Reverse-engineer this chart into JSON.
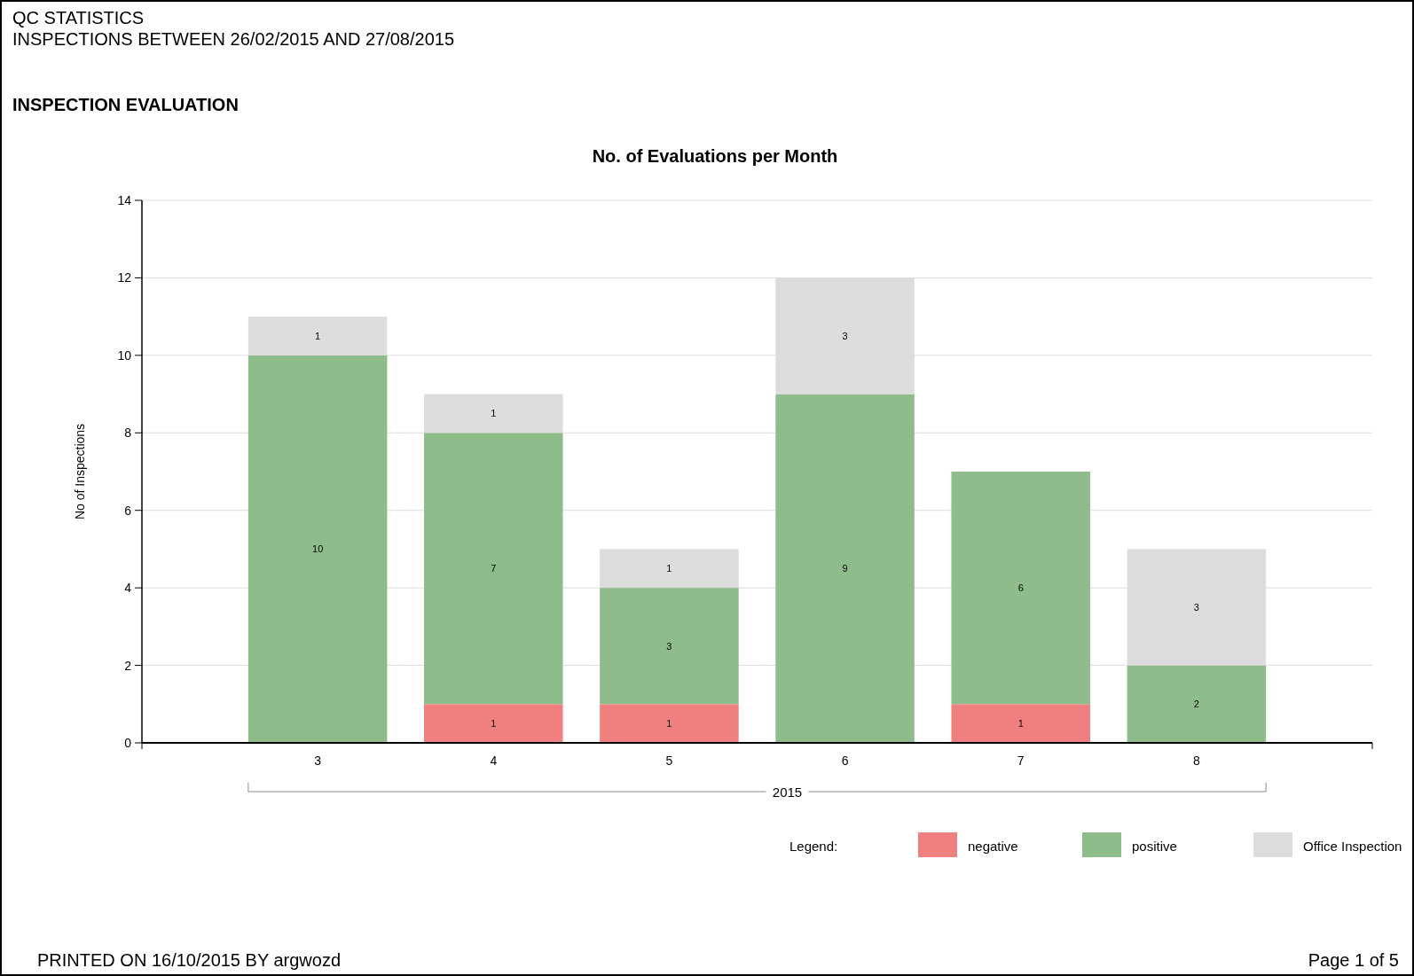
{
  "chart_data": {
    "type": "bar",
    "title": "No. of Evaluations per Month",
    "xlabel": "2015",
    "ylabel": "No of Inspections",
    "legend_title": "Legend:",
    "annotations": [
      "QC STATISTICS",
      "INSPECTIONS BETWEEN 26/02/2015 AND 27/08/2015",
      "INSPECTION EVALUATION",
      "PRINTED ON 16/10/2015 BY argwozd",
      "Page 1 of 5"
    ],
    "categories": [
      "3",
      "4",
      "5",
      "6",
      "7",
      "8"
    ],
    "series": [
      {
        "name": "negative",
        "color": "#f08080",
        "values": [
          null,
          1,
          1,
          null,
          1,
          null
        ]
      },
      {
        "name": "positive",
        "color": "#8fbc8b",
        "values": [
          10,
          7,
          3,
          9,
          6,
          2
        ]
      },
      {
        "name": "Office Inspection",
        "color": "#dcdcdc",
        "values": [
          1,
          1,
          1,
          3,
          null,
          3
        ]
      }
    ],
    "stacked": true,
    "data_labels": true,
    "ylim": [
      0,
      14
    ],
    "yticks": [
      0,
      2,
      4,
      6,
      8,
      10,
      12,
      14
    ],
    "grid": "y",
    "legend": "bottom right"
  }
}
